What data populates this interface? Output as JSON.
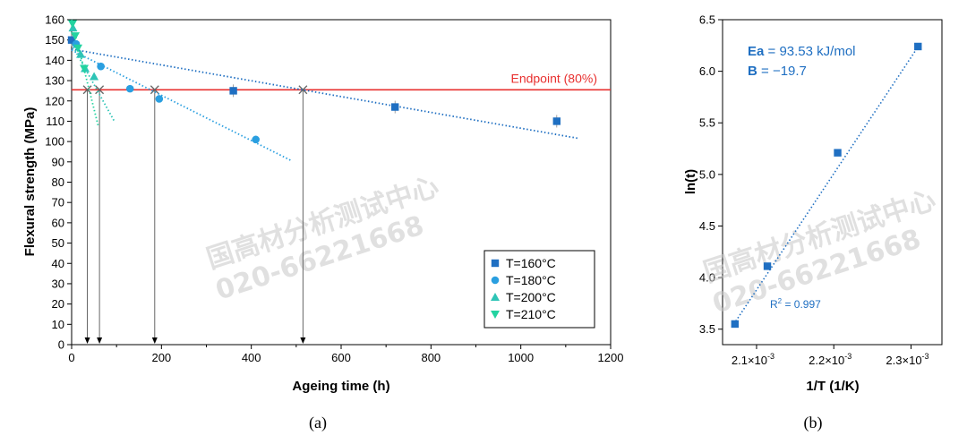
{
  "watermark": {
    "line1": "国高材分析测试中心",
    "line2": "020-66221668"
  },
  "chart_data": [
    {
      "type": "scatter",
      "panel_label": "(a)",
      "xlabel": "Ageing time (h)",
      "ylabel": "Flexural strength (MPa)",
      "xlim": [
        0,
        1200
      ],
      "ylim": [
        0,
        160
      ],
      "x_ticks": [
        0,
        200,
        400,
        600,
        800,
        1000,
        1200
      ],
      "y_ticks": [
        0,
        10,
        20,
        30,
        40,
        50,
        60,
        70,
        80,
        90,
        100,
        110,
        120,
        130,
        140,
        150,
        160
      ],
      "legend_position": "bottom-right",
      "endpoint": {
        "label": "Endpoint (80%)",
        "value": 125.5,
        "color": "#e8302f"
      },
      "crossings_x": [
        35,
        62,
        185,
        515
      ],
      "series": [
        {
          "name": "T=160°C",
          "marker": "square",
          "color": "#1f6fc2",
          "points": [
            [
              0,
              150
            ],
            [
              360,
              125
            ],
            [
              720,
              117
            ],
            [
              1080,
              110
            ]
          ],
          "fit": [
            [
              0,
              145.5
            ],
            [
              1130,
              101.5
            ]
          ]
        },
        {
          "name": "T=180°C",
          "marker": "circle",
          "color": "#2a9fe0",
          "points": [
            [
              10,
              148
            ],
            [
              65,
              137
            ],
            [
              130,
              126
            ],
            [
              195,
              121
            ],
            [
              410,
              101
            ]
          ],
          "fit": [
            [
              0,
              145
            ],
            [
              490,
              90.5
            ]
          ]
        },
        {
          "name": "T=200°C",
          "marker": "triangle-up",
          "color": "#2ec4b6",
          "points": [
            [
              3,
              156
            ],
            [
              20,
              143
            ],
            [
              30,
              136
            ],
            [
              50,
              132
            ]
          ],
          "fit": [
            [
              0,
              148
            ],
            [
              95,
              110
            ]
          ]
        },
        {
          "name": "T=210°C",
          "marker": "triangle-down",
          "color": "#22d3a0",
          "points": [
            [
              2,
              158
            ],
            [
              8,
              152
            ],
            [
              14,
              146
            ],
            [
              28,
              136
            ]
          ],
          "fit": [
            [
              0,
              160
            ],
            [
              60,
              107
            ]
          ]
        }
      ]
    },
    {
      "type": "scatter",
      "panel_label": "(b)",
      "xlabel": "1/T (1/K)",
      "ylabel": "ln(t)",
      "xlim": [
        0.002056,
        0.00234
      ],
      "ylim": [
        3.35,
        6.5
      ],
      "x_ticks": [
        0.0021,
        0.0022,
        0.0023
      ],
      "x_tick_labels": [
        "2.1×10",
        "2.2×10",
        "2.3×10"
      ],
      "x_tick_exponent": "-3",
      "y_ticks": [
        3.5,
        4.0,
        4.5,
        5.0,
        5.5,
        6.0,
        6.5
      ],
      "color": "#1f6fc2",
      "points": [
        [
          0.002072,
          3.55
        ],
        [
          0.002114,
          4.11
        ],
        [
          0.002205,
          5.21
        ],
        [
          0.002309,
          6.24
        ]
      ],
      "fit": [
        [
          0.002068,
          3.52
        ],
        [
          0.002312,
          6.27
        ]
      ],
      "annotations": {
        "ea_bold": "Ea",
        "ea_value": " = 93.53 kJ/mol",
        "b_bold": "B",
        "b_value": " = −19.7",
        "r2_prefix": "R",
        "r2_sup": "2",
        "r2_value": " = 0.997"
      }
    }
  ]
}
